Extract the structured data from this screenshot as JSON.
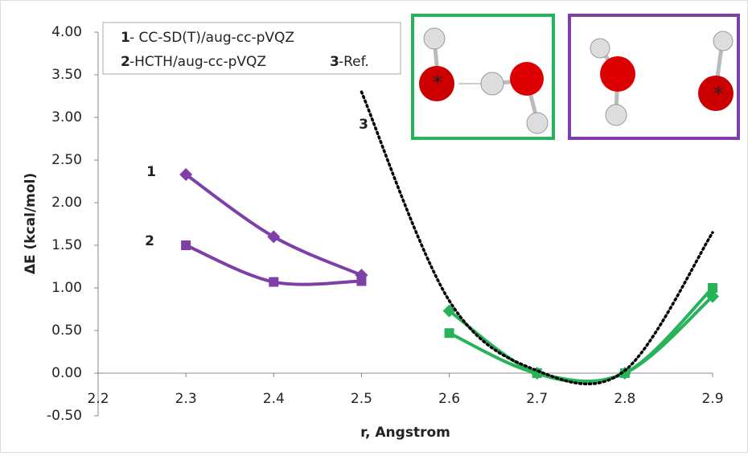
{
  "chart_data": {
    "type": "line",
    "xlabel": "r, Angstrom",
    "ylabel": "ΔE (kcal/mol)",
    "xlim": [
      2.2,
      2.9
    ],
    "xticks": [
      2.2,
      2.3,
      2.4,
      2.5,
      2.6,
      2.7,
      2.8,
      2.9
    ],
    "ylim": [
      -0.5,
      4.0
    ],
    "yticks": [
      {
        "value": -0.5,
        "label": "-0.50"
      },
      {
        "value": 0,
        "label": "0.00"
      },
      {
        "value": 0.5,
        "label": "0.50"
      },
      {
        "value": 1,
        "label": "1.00"
      },
      {
        "value": 1.5,
        "label": "1.50"
      },
      {
        "value": 2,
        "label": "2.00"
      },
      {
        "value": 2.5,
        "label": "2.50"
      },
      {
        "value": 3,
        "label": "3.00"
      },
      {
        "value": 3.5,
        "label": "3.50"
      },
      {
        "value": 4,
        "label": "4.00"
      }
    ],
    "legend": [
      {
        "number": "1",
        "text": "- CC-SD(T)/aug-cc-pVQZ"
      },
      {
        "number": "2",
        "text": "-HCTH/aug-cc-pVQZ"
      },
      {
        "number": "3",
        "text": "-Ref."
      }
    ],
    "series": [
      {
        "label": "1",
        "color": "#7e3fa8",
        "marker": "diamond",
        "x": [
          2.3,
          2.4,
          2.5
        ],
        "values": [
          2.33,
          1.6,
          1.15
        ]
      },
      {
        "label": "2",
        "color": "#7e3fa8",
        "marker": "square",
        "x": [
          2.3,
          2.4,
          2.5
        ],
        "values": [
          1.5,
          1.07,
          1.08
        ]
      },
      {
        "color": "#27b35a",
        "marker": "diamond",
        "x": [
          2.6,
          2.7,
          2.8,
          2.9
        ],
        "values": [
          0.73,
          0.0,
          0.0,
          0.9
        ]
      },
      {
        "color": "#27b35a",
        "marker": "square",
        "x": [
          2.6,
          2.7,
          2.8,
          2.9
        ],
        "values": [
          0.47,
          0.0,
          0.0,
          1.0
        ]
      },
      {
        "label": "3",
        "color": "#000000",
        "marker": "dotted",
        "x": [
          2.5,
          2.6,
          2.7,
          2.8,
          2.9
        ],
        "values": [
          3.3,
          0.85,
          0.03,
          0.03,
          1.65
        ]
      }
    ],
    "insets": [
      {
        "marker": "*"
      },
      {
        "marker": "*"
      }
    ]
  }
}
